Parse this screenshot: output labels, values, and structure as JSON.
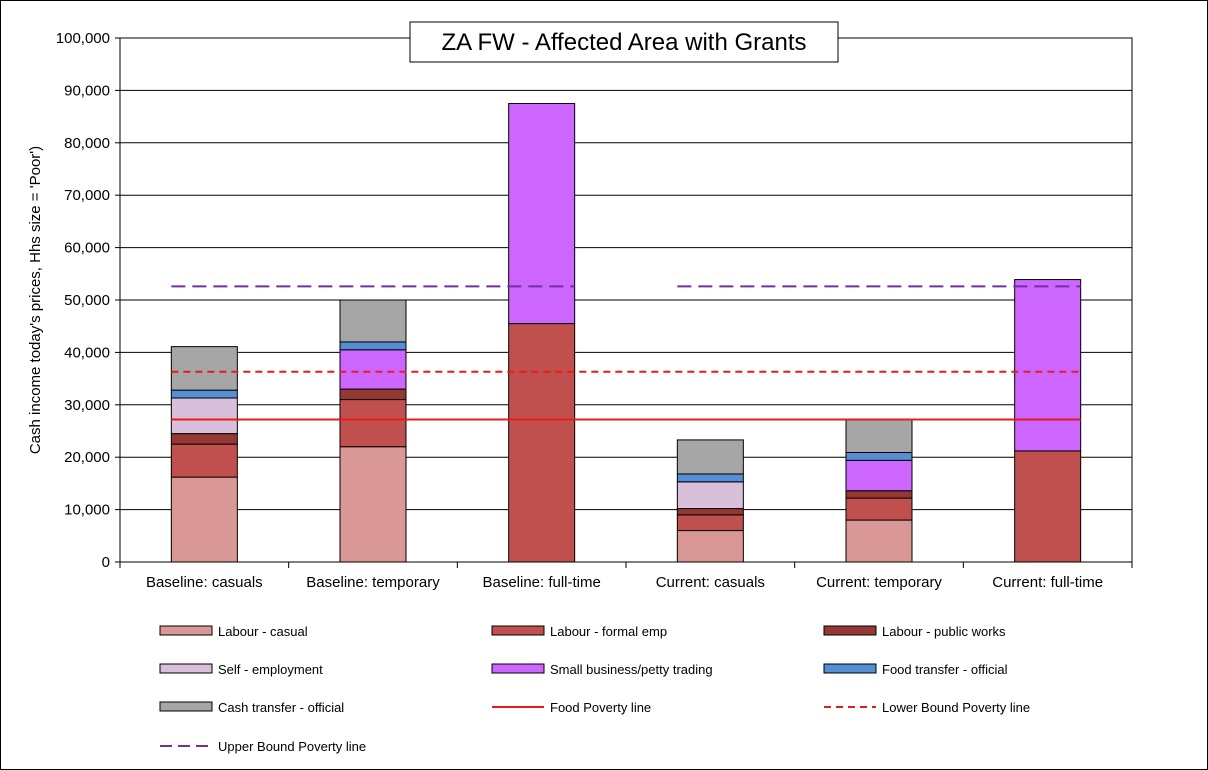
{
  "chart_data": {
    "type": "bar",
    "stacked": true,
    "title": "ZA FW - Affected Area with Grants",
    "xlabel": "",
    "ylabel": "Cash income today's prices, Hhs size = 'Poor')",
    "ylim": [
      0,
      100000
    ],
    "yticks": [
      0,
      10000,
      20000,
      30000,
      40000,
      50000,
      60000,
      70000,
      80000,
      90000,
      100000
    ],
    "ytick_labels": [
      "0",
      "10,000",
      "20,000",
      "30,000",
      "40,000",
      "50,000",
      "60,000",
      "70,000",
      "80,000",
      "90,000",
      "100,000"
    ],
    "grid": true,
    "legend_position": "bottom",
    "categories": [
      "Baseline: casuals",
      "Baseline: temporary",
      "Baseline: full-time",
      "Current: casuals",
      "Current: temporary",
      "Current: full-time"
    ],
    "series": [
      {
        "name": "Labour - casual",
        "color": "#d99795",
        "values": [
          16200,
          22000,
          0,
          6000,
          8000,
          0
        ]
      },
      {
        "name": "Labour - formal emp",
        "color": "#c0504d",
        "values": [
          6300,
          9000,
          45500,
          3000,
          4200,
          21200
        ]
      },
      {
        "name": "Labour - public works",
        "color": "#953735",
        "values": [
          2000,
          2000,
          0,
          1200,
          1400,
          0
        ]
      },
      {
        "name": "Self - employment",
        "color": "#d9bfd9",
        "values": [
          6800,
          0,
          0,
          5100,
          0,
          0
        ]
      },
      {
        "name": "Small business/petty trading",
        "color": "#cc66ff",
        "values": [
          0,
          7500,
          42000,
          0,
          5800,
          32700
        ]
      },
      {
        "name": "Food transfer - official",
        "color": "#558ed5",
        "values": [
          1500,
          1500,
          0,
          1500,
          1500,
          0
        ]
      },
      {
        "name": "Cash transfer - official",
        "color": "#a6a6a6",
        "values": [
          8300,
          8000,
          0,
          6500,
          6300,
          0
        ]
      }
    ],
    "lines": [
      {
        "name": "Food Poverty line",
        "color": "#e51c1c",
        "style": "solid",
        "value": 27200,
        "segments": [
          [
            0,
            5
          ]
        ]
      },
      {
        "name": "Lower Bound Poverty line",
        "color": "#e51c1c",
        "style": "dashed",
        "value": 36300,
        "segments": [
          [
            0,
            5
          ]
        ]
      },
      {
        "name": "Upper Bound Poverty line",
        "color": "#7030a0",
        "style": "dashed",
        "value": 52600,
        "segments": [
          [
            0,
            2
          ],
          [
            3,
            5
          ]
        ]
      }
    ]
  }
}
